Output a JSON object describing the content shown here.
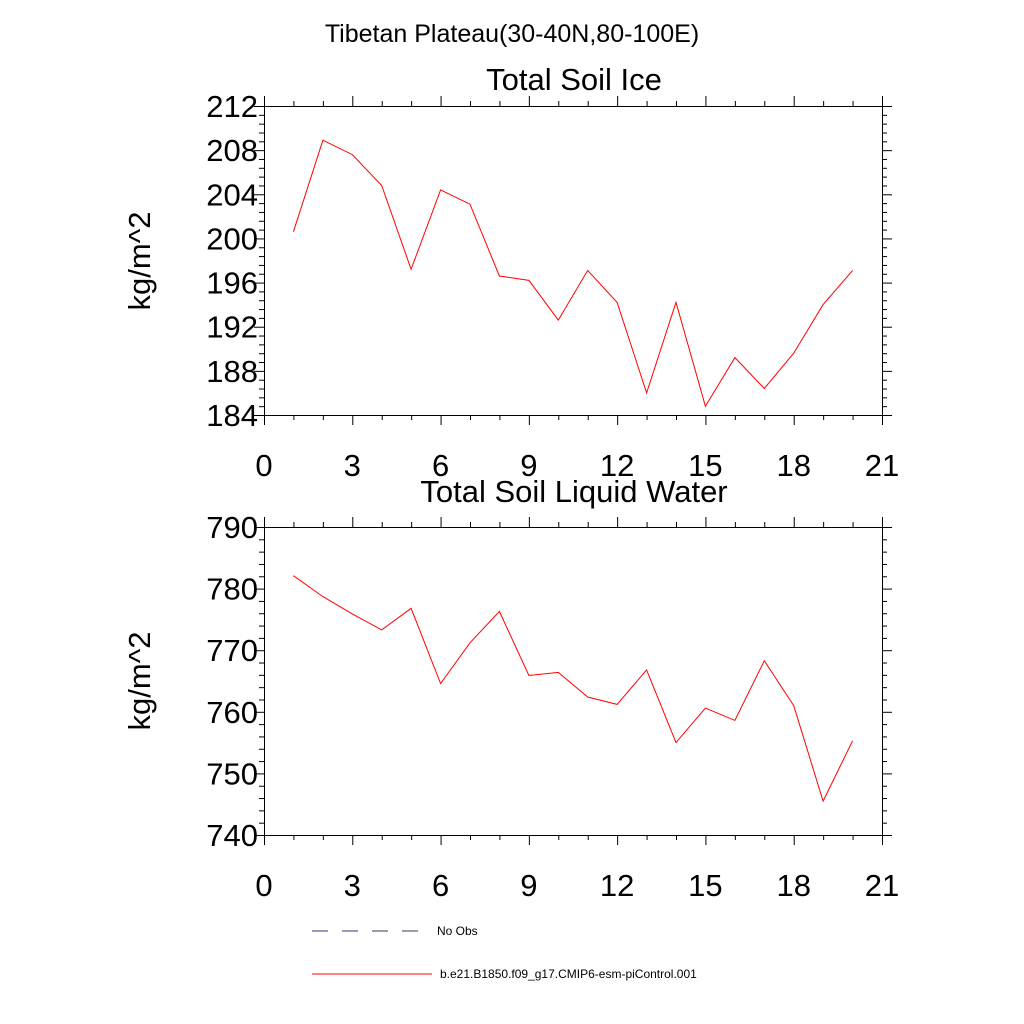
{
  "figure_title": "Tibetan Plateau(30-40N,80-100E)",
  "legend": [
    {
      "label": "No Obs",
      "color": "#2c3a6e",
      "style": "dashed"
    },
    {
      "label": "b.e21.B1850.f09_g17.CMIP6-esm-piControl.001",
      "color": "#ff0000",
      "style": "solid"
    }
  ],
  "chart_data": [
    {
      "type": "line",
      "title": "Total Soil Ice",
      "xlabel": "",
      "ylabel": "kg/m^2",
      "xlim": [
        0,
        21
      ],
      "ylim": [
        184,
        212
      ],
      "xticks": [
        0,
        3,
        6,
        9,
        12,
        15,
        18,
        21
      ],
      "yticks": [
        184,
        188,
        192,
        196,
        200,
        204,
        208,
        212
      ],
      "xtick_labels": [
        "0",
        "3",
        "6",
        "9",
        "12",
        "15",
        "18",
        "21"
      ],
      "ytick_labels": [
        "184",
        "188",
        "192",
        "196",
        "200",
        "204",
        "208",
        "212"
      ],
      "series": [
        {
          "name": "b.e21.B1850.f09_g17.CMIP6-esm-piControl.001",
          "color": "#ff0000",
          "x": [
            1,
            2,
            3,
            4,
            5,
            6,
            7,
            8,
            9,
            10,
            11,
            12,
            13,
            14,
            15,
            16,
            17,
            18,
            19,
            20
          ],
          "values": [
            200.6,
            208.9,
            207.6,
            204.8,
            197.2,
            204.4,
            203.1,
            196.6,
            196.2,
            192.6,
            197.1,
            194.2,
            186.0,
            194.2,
            184.8,
            189.2,
            186.4,
            189.6,
            194.0,
            197.1
          ]
        }
      ]
    },
    {
      "type": "line",
      "title": "Total Soil Liquid Water",
      "xlabel": "",
      "ylabel": "kg/m^2",
      "xlim": [
        0,
        21
      ],
      "ylim": [
        740,
        790
      ],
      "xticks": [
        0,
        3,
        6,
        9,
        12,
        15,
        18,
        21
      ],
      "yticks": [
        740,
        750,
        760,
        770,
        780,
        790
      ],
      "xtick_labels": [
        "0",
        "3",
        "6",
        "9",
        "12",
        "15",
        "18",
        "21"
      ],
      "ytick_labels": [
        "740",
        "750",
        "760",
        "770",
        "780",
        "790"
      ],
      "series": [
        {
          "name": "b.e21.B1850.f09_g17.CMIP6-esm-piControl.001",
          "color": "#ff0000",
          "x": [
            1,
            2,
            3,
            4,
            5,
            6,
            7,
            8,
            9,
            10,
            11,
            12,
            13,
            14,
            15,
            16,
            17,
            18,
            19,
            20
          ],
          "values": [
            782.1,
            778.7,
            775.9,
            773.3,
            776.8,
            764.6,
            771.2,
            776.3,
            765.9,
            766.4,
            762.4,
            761.2,
            766.8,
            755.0,
            760.6,
            758.6,
            768.3,
            761.0,
            745.5,
            755.3
          ]
        }
      ]
    }
  ]
}
